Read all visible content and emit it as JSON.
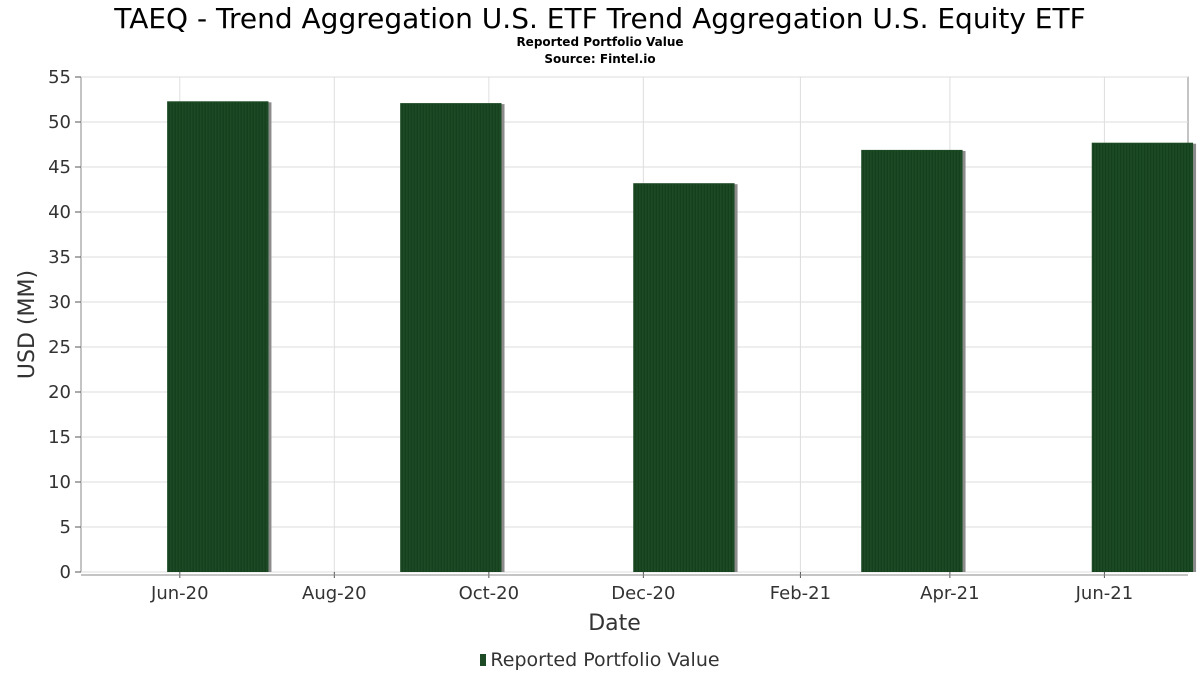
{
  "chart_data": {
    "type": "bar",
    "title": "TAEQ - Trend Aggregation U.S. ETF Trend Aggregation U.S. Equity ETF",
    "subtitle": "Reported Portfolio Value",
    "source": "Source: Fintel.io",
    "xlabel": "Date",
    "ylabel": "USD (MM)",
    "x_tick_labels": [
      "Jun-20",
      "Aug-20",
      "Oct-20",
      "Dec-20",
      "Feb-21",
      "Apr-21",
      "Jun-21"
    ],
    "x_ticks": [
      "2020-06-15",
      "2020-08-15",
      "2020-10-15",
      "2020-12-15",
      "2021-02-15",
      "2021-04-15",
      "2021-06-15"
    ],
    "xlim": [
      "2020-05-07",
      "2021-07-18"
    ],
    "ylim": [
      0,
      55
    ],
    "y_ticks": [
      0,
      5,
      10,
      15,
      20,
      25,
      30,
      35,
      40,
      45,
      50,
      55
    ],
    "grid": true,
    "legend_position": "bottom",
    "colors": {
      "bar": "#1c4a24",
      "bar_shadow": "#8c8c8c"
    },
    "series": [
      {
        "name": "Reported Portfolio Value",
        "points": [
          {
            "x": "2020-06-30",
            "value": 52.3
          },
          {
            "x": "2020-09-30",
            "value": 52.1
          },
          {
            "x": "2020-12-31",
            "value": 43.2
          },
          {
            "x": "2021-03-31",
            "value": 46.9
          },
          {
            "x": "2021-06-30",
            "value": 47.7
          }
        ]
      }
    ]
  }
}
